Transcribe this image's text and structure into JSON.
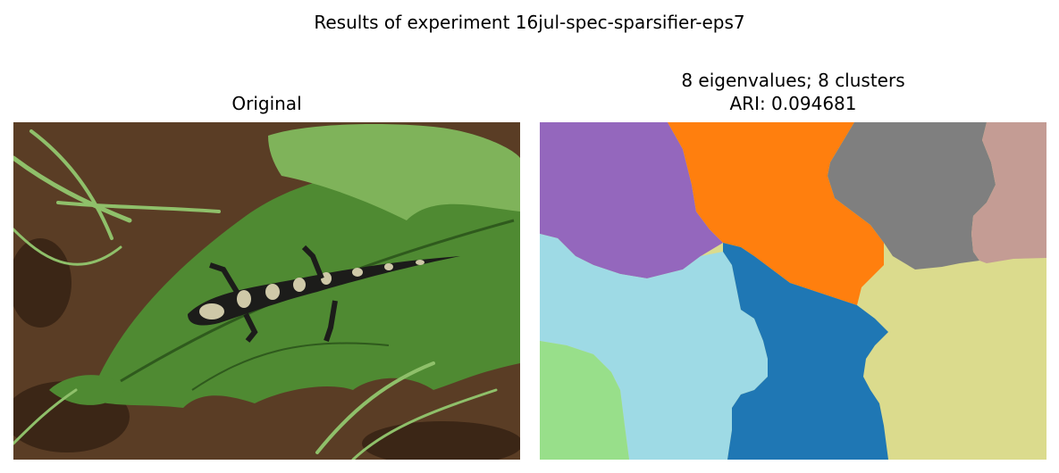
{
  "figure": {
    "suptitle": "Results of experiment 16jul-spec-sparsifier-eps7"
  },
  "left_panel": {
    "title": "Original"
  },
  "right_panel": {
    "title_line1": "8 eigenvalues; 8 clusters",
    "title_line2": "ARI: 0.094681"
  },
  "segments": {
    "purple": "#9467bd",
    "orange": "#ff7f0e",
    "gray": "#7f7f7f",
    "rose": "#c49c94",
    "light_blue": "#9edae5",
    "blue": "#1f77b4",
    "khaki": "#dbdb8d",
    "light_green": "#98df8a"
  },
  "photo_colors": {
    "soil": "#5a3d25",
    "soil_dark": "#3b2616",
    "leaf": "#4f8a32",
    "leaf_light": "#7fb35a",
    "leaf_dark": "#2f5a1d",
    "grass": "#8fc06a",
    "salamander_dark": "#1c1c1a",
    "salamander_light": "#cfc9a8"
  }
}
